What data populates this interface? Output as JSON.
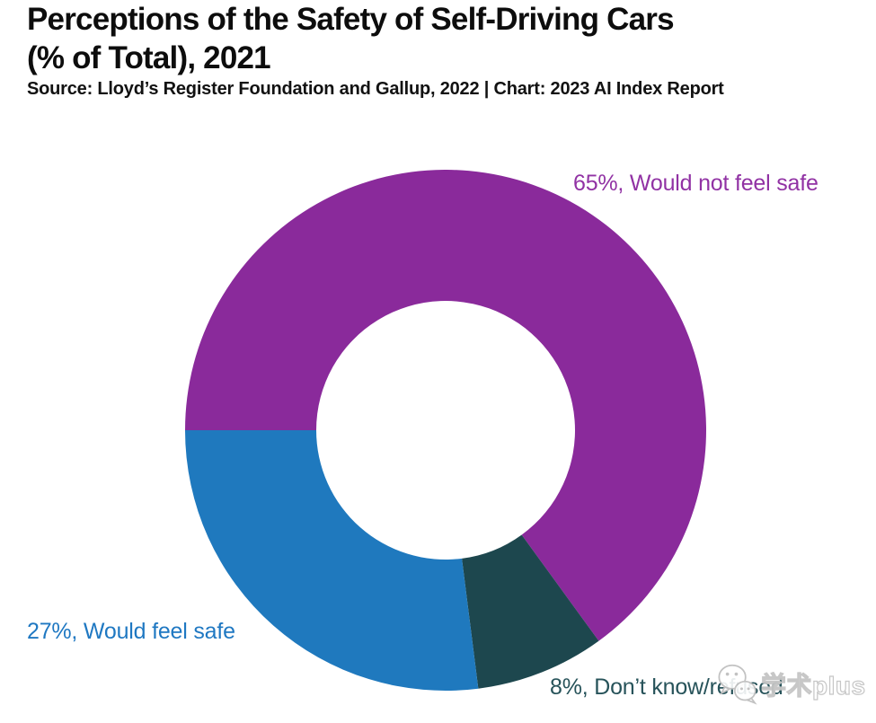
{
  "header": {
    "title": "Perceptions of the Safety of Self-Driving Cars\n(% of Total), 2021",
    "source": "Source: Lloyd’s Register Foundation and Gallup, 2022 | Chart: 2023 AI Index Report"
  },
  "chart_data": {
    "type": "pie",
    "subtype": "donut",
    "title": "Perceptions of the Safety of Self-Driving Cars (% of Total), 2021",
    "source": "Source: Lloyd’s Register Foundation and Gallup, 2022 | Chart: 2023 AI Index Report",
    "unit": "%",
    "total": 100,
    "start_angle_deg": 180,
    "direction": "clockwise",
    "inner_radius_ratio": 0.497,
    "legend_position": "labels-around-donut",
    "segments": [
      {
        "id": "would-not-feel-safe",
        "label": "Would not feel safe",
        "value_pct": 65,
        "color": "#8a2a9b",
        "label_color": "#9132a4",
        "annotation": "65%, Would not feel safe"
      },
      {
        "id": "dont-know-refused",
        "label": "Don’t know/refused",
        "value_pct": 8,
        "color": "#1d474e",
        "label_color": "#27535a",
        "annotation": "8%, Don’t know/refused"
      },
      {
        "id": "would-feel-safe",
        "label": "Would feel safe",
        "value_pct": 27,
        "color": "#1f79be",
        "label_color": "#1f78c2",
        "annotation": "27%, Would feel safe"
      }
    ]
  },
  "watermark": {
    "text": "学术plus",
    "icon": "wechat-icon"
  }
}
